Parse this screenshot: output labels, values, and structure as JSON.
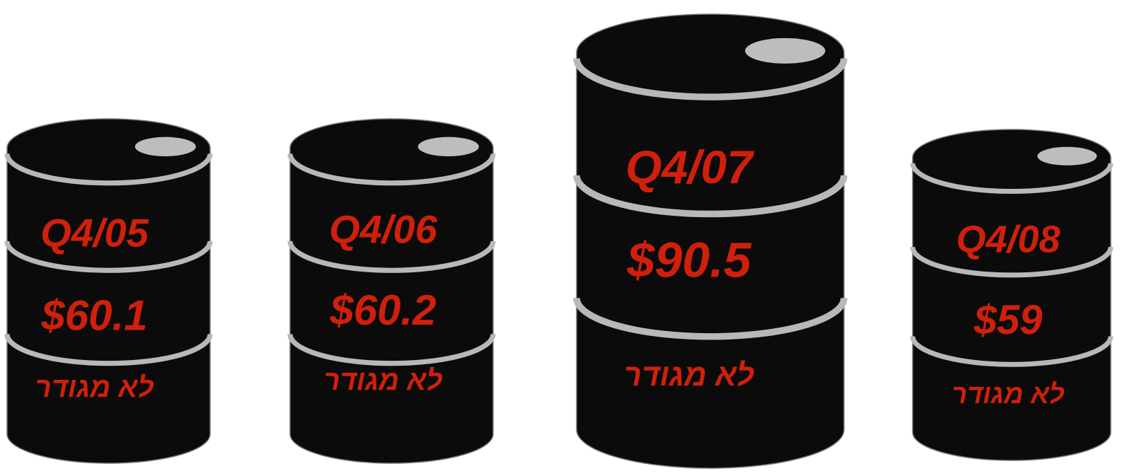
{
  "barrels": [
    {
      "quarter": "Q4/05",
      "price": "$60.1",
      "note": "לא מגודר"
    },
    {
      "quarter": "Q4/06",
      "price": "$60.2",
      "note": "לא מגודר"
    },
    {
      "quarter": "Q4/07",
      "price": "$90.5",
      "note": "לא מגודר"
    },
    {
      "quarter": "Q4/08",
      "price": "$59",
      "note": "לא מגודר"
    }
  ]
}
